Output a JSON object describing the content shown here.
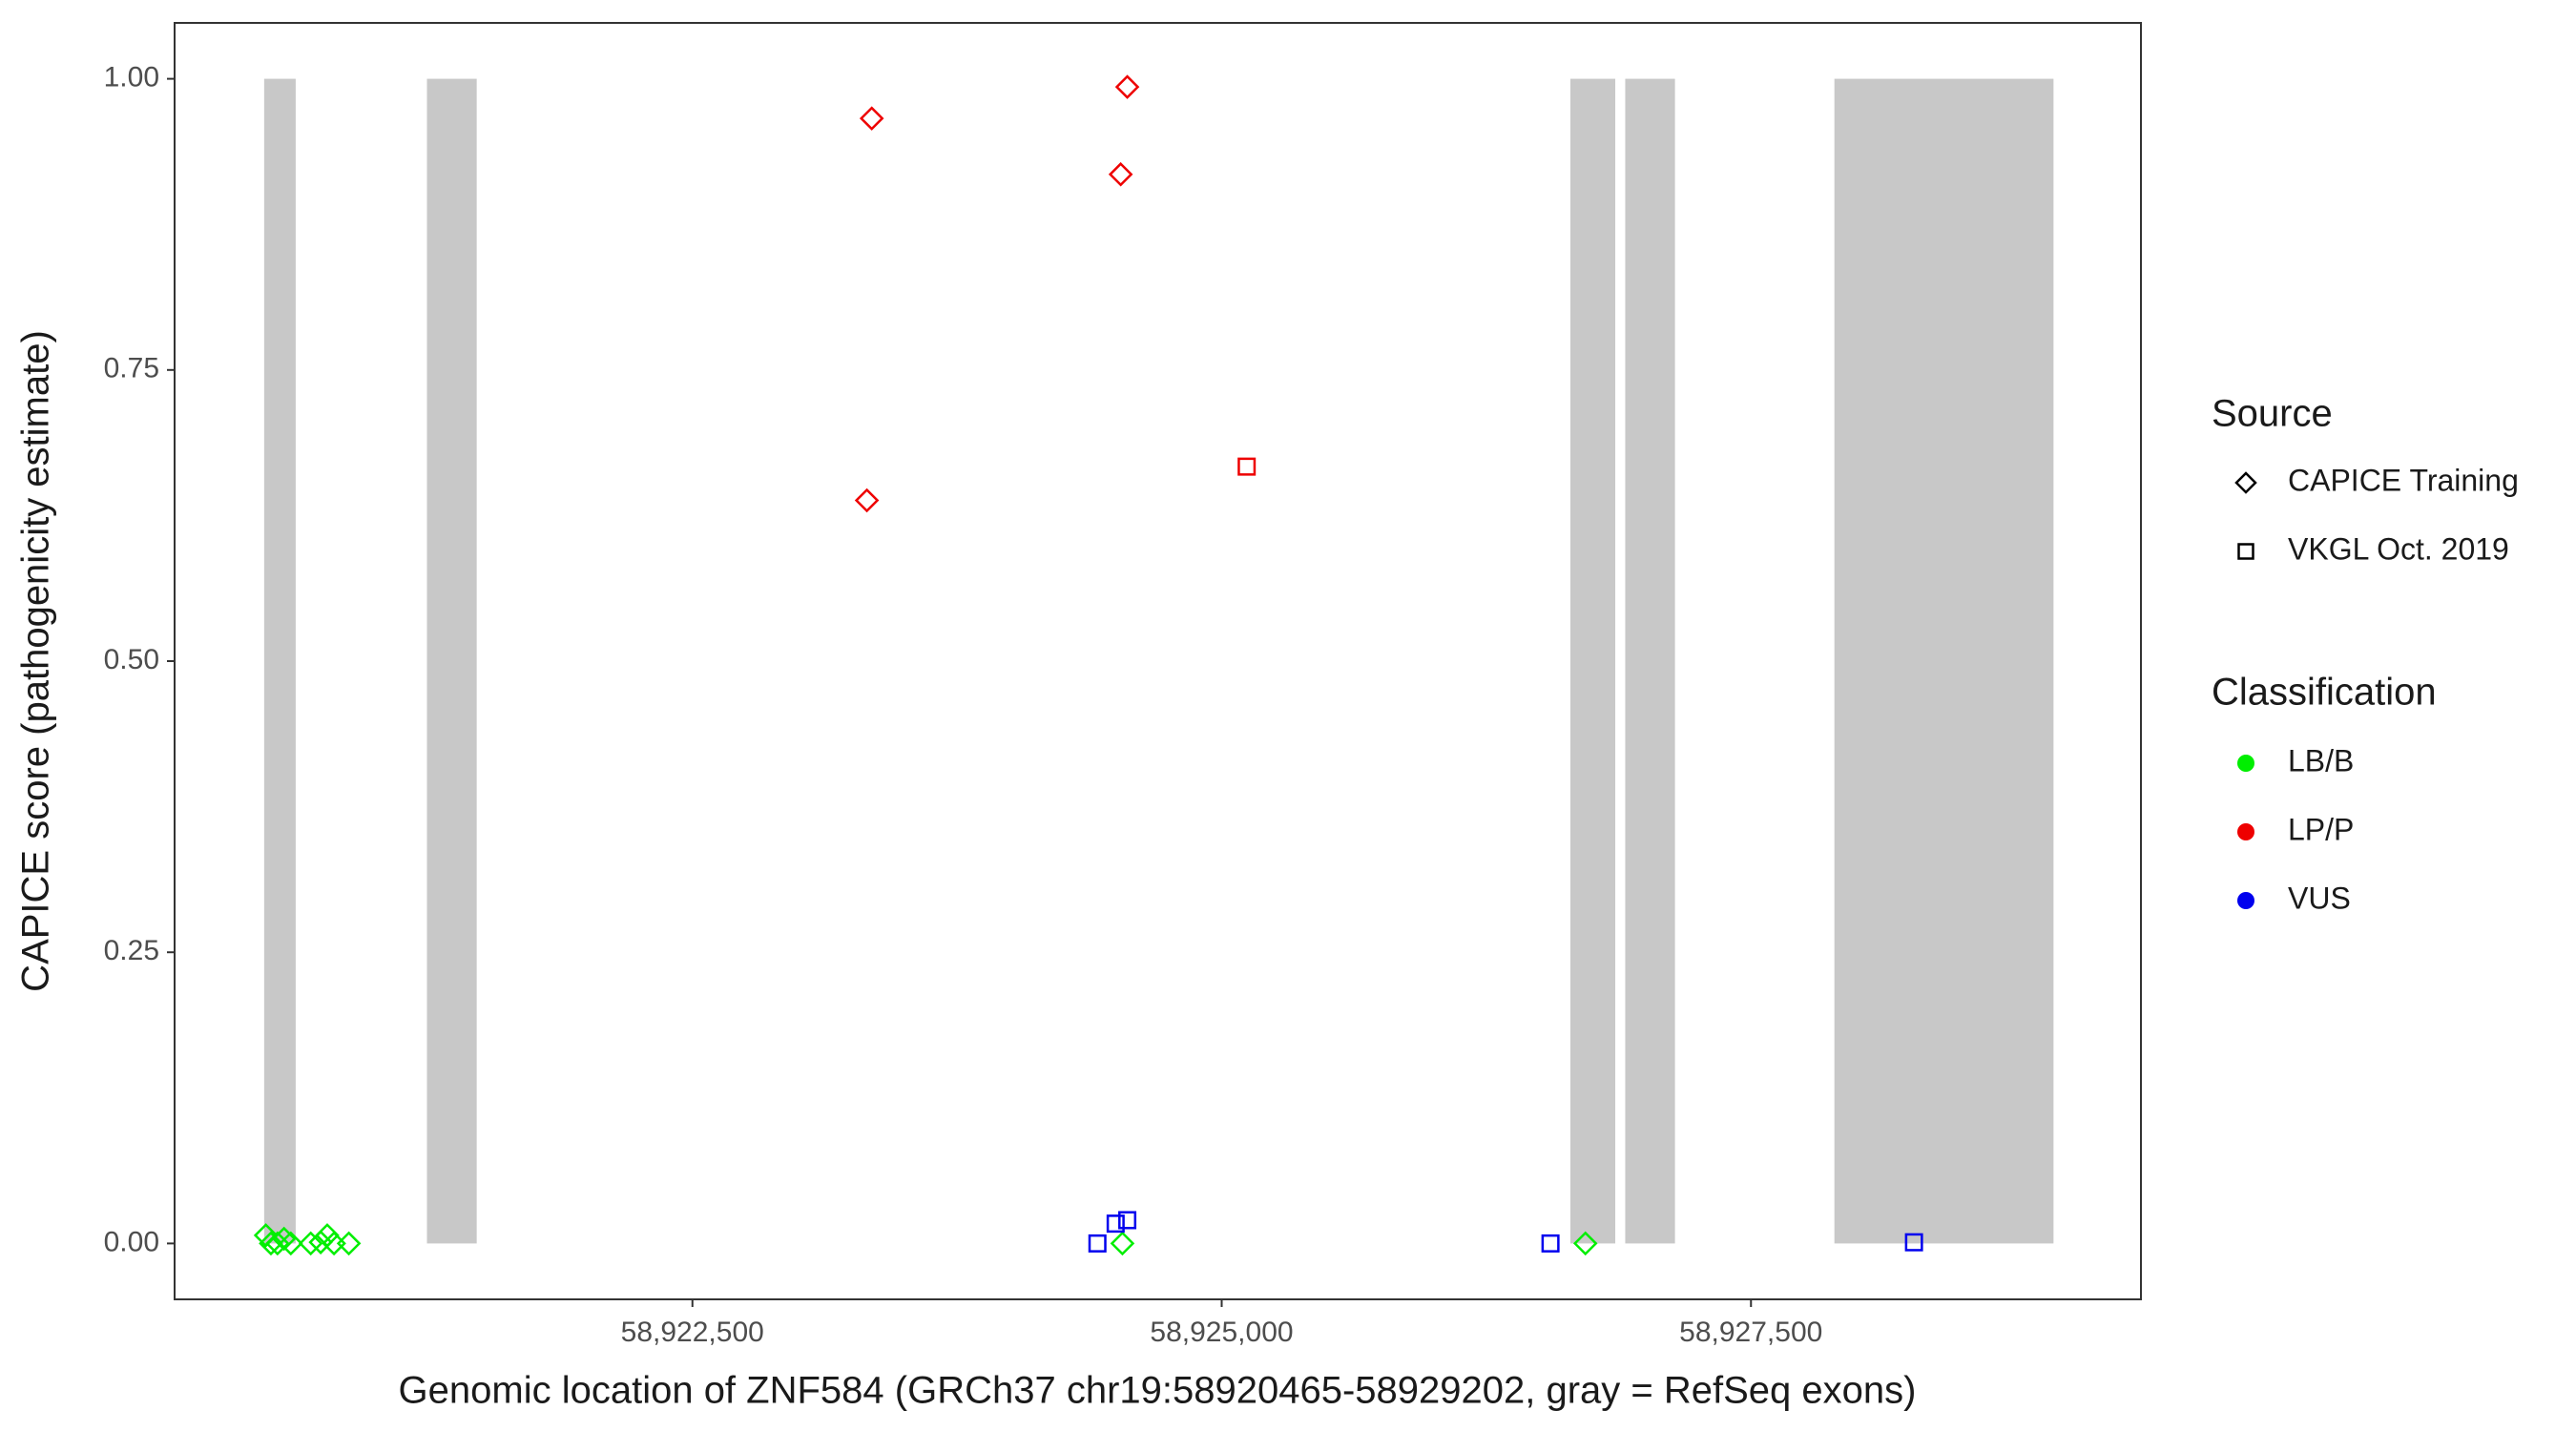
{
  "chart_data": {
    "type": "scatter",
    "x_label": "Genomic location of ZNF584 (GRCh37 chr19:58920465-58929202, gray = RefSeq exons)",
    "y_label": "CAPICE score (pathogenicity estimate)",
    "xlim": [
      58920054,
      58929342
    ],
    "ylim": [
      -0.048,
      1.048
    ],
    "xticks": [
      {
        "value": 58922500,
        "label": "58,922,500"
      },
      {
        "value": 58925000,
        "label": "58,925,000"
      },
      {
        "value": 58927500,
        "label": "58,927,500"
      }
    ],
    "yticks": [
      {
        "value": 0,
        "label": "0.00"
      },
      {
        "value": 0.25,
        "label": "0.25"
      },
      {
        "value": 0.5,
        "label": "0.50"
      },
      {
        "value": 0.75,
        "label": "0.75"
      },
      {
        "value": 1,
        "label": "1.00"
      }
    ],
    "exon_color": "#c8c8c8",
    "exons": [
      {
        "start": 58920477,
        "end": 58920626,
        "top": 1
      },
      {
        "start": 58921246,
        "end": 58921481,
        "top": 1
      },
      {
        "start": 58926647,
        "end": 58926859,
        "top": 1
      },
      {
        "start": 58926906,
        "end": 58927141,
        "top": 1
      },
      {
        "start": 58927894,
        "end": 58928929,
        "top": 1
      }
    ],
    "source_title": "Source",
    "sources": [
      {
        "name": "CAPICE Training",
        "shape": "diamond"
      },
      {
        "name": "VKGL Oct. 2019",
        "shape": "square"
      }
    ],
    "classification_title": "Classification",
    "classifications": [
      {
        "name": "LB/B",
        "color": "#00ee00"
      },
      {
        "name": "LP/P",
        "color": "#ee0000"
      },
      {
        "name": "VUS",
        "color": "#0000ee"
      }
    ],
    "series": [
      {
        "classification": "LB/B",
        "source": "CAPICE Training",
        "x": [
          58920485,
          58920509,
          58920540,
          58920571,
          58920603,
          58920697,
          58920744,
          58920775,
          58920807,
          58920877,
          58924531,
          58926718
        ],
        "y": [
          0.007,
          0,
          0,
          0.004,
          0,
          0,
          0.001,
          0.007,
          0,
          0,
          0,
          0
        ]
      },
      {
        "classification": "LP/P",
        "source": "CAPICE Training",
        "x": [
          58923347,
          58924554,
          58924523,
          58923324
        ],
        "y": [
          0.966,
          0.993,
          0.918,
          0.638
        ]
      },
      {
        "classification": "LP/P",
        "source": "VKGL Oct. 2019",
        "x": [
          58925118
        ],
        "y": [
          0.667
        ]
      },
      {
        "classification": "VUS",
        "source": "VKGL Oct. 2019",
        "x": [
          58924413,
          58924499,
          58924554,
          58926553,
          58928270
        ],
        "y": [
          0,
          0.017,
          0.02,
          0,
          0.001
        ]
      }
    ]
  }
}
